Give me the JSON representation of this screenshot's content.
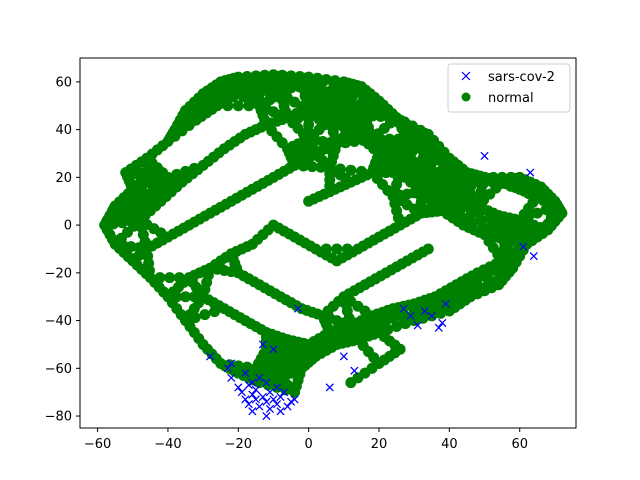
{
  "chart_data": {
    "type": "scatter",
    "xlim": [
      -65,
      76
    ],
    "ylim": [
      -85,
      70
    ],
    "x_ticks": [
      -60,
      -40,
      -20,
      0,
      20,
      40,
      60
    ],
    "y_ticks": [
      -80,
      -60,
      -40,
      -20,
      0,
      20,
      40,
      60
    ],
    "grid": false,
    "legend_position": "top-right",
    "series": [
      {
        "name": "sars-cov-2",
        "marker": "x",
        "color": "#0000ff",
        "points": [
          [
            -28,
            -55
          ],
          [
            -23,
            -60
          ],
          [
            -22,
            -58
          ],
          [
            -22,
            -64
          ],
          [
            -20,
            -68
          ],
          [
            -19,
            -70
          ],
          [
            -18,
            -73
          ],
          [
            -17,
            -67
          ],
          [
            -17,
            -75
          ],
          [
            -16,
            -71
          ],
          [
            -16,
            -78
          ],
          [
            -15,
            -73
          ],
          [
            -15,
            -69
          ],
          [
            -14,
            -76
          ],
          [
            -14,
            -64
          ],
          [
            -13,
            -72
          ],
          [
            -13,
            -50
          ],
          [
            -12,
            -74
          ],
          [
            -12,
            -66
          ],
          [
            -11,
            -77
          ],
          [
            -11,
            -70
          ],
          [
            -10,
            -73
          ],
          [
            -10,
            -52
          ],
          [
            -9,
            -75
          ],
          [
            -9,
            -68
          ],
          [
            -8,
            -72
          ],
          [
            -8,
            -78
          ],
          [
            -7,
            -70
          ],
          [
            -6,
            -76
          ],
          [
            -5,
            -74
          ],
          [
            -4,
            -73
          ],
          [
            -3,
            -35
          ],
          [
            6,
            -68
          ],
          [
            10,
            -55
          ],
          [
            13,
            -61
          ],
          [
            27,
            -35
          ],
          [
            29,
            -38
          ],
          [
            31,
            -42
          ],
          [
            33,
            -36
          ],
          [
            35,
            -38
          ],
          [
            37,
            -43
          ],
          [
            38,
            -41
          ],
          [
            39,
            -33
          ],
          [
            50,
            29
          ],
          [
            61,
            -9
          ],
          [
            63,
            22
          ],
          [
            64,
            -13
          ],
          [
            -18,
            -62
          ],
          [
            -16,
            -66
          ],
          [
            -12,
            -80
          ]
        ]
      },
      {
        "name": "normal",
        "marker": "o",
        "color": "#008000",
        "points": [
          [
            -55,
            8
          ],
          [
            -50,
            15
          ],
          [
            -45,
            22
          ],
          [
            -40,
            35
          ],
          [
            -35,
            48
          ],
          [
            -30,
            55
          ],
          [
            -25,
            60
          ],
          [
            -20,
            62
          ],
          [
            -15,
            58
          ],
          [
            -10,
            63
          ],
          [
            -5,
            60
          ],
          [
            0,
            62
          ],
          [
            5,
            55
          ],
          [
            10,
            60
          ],
          [
            15,
            58
          ],
          [
            20,
            52
          ],
          [
            25,
            45
          ],
          [
            30,
            40
          ],
          [
            35,
            32
          ],
          [
            40,
            28
          ],
          [
            45,
            22
          ],
          [
            50,
            20
          ],
          [
            55,
            18
          ],
          [
            60,
            15
          ],
          [
            65,
            12
          ],
          [
            70,
            8
          ],
          [
            72,
            5
          ],
          [
            68,
            -2
          ],
          [
            62,
            -8
          ],
          [
            55,
            -15
          ],
          [
            48,
            -20
          ],
          [
            42,
            -25
          ],
          [
            36,
            -30
          ],
          [
            30,
            -33
          ],
          [
            24,
            -35
          ],
          [
            18,
            -38
          ],
          [
            12,
            -42
          ],
          [
            6,
            -45
          ],
          [
            0,
            -50
          ],
          [
            -5,
            -55
          ],
          [
            -10,
            -58
          ],
          [
            -15,
            -60
          ],
          [
            -20,
            -62
          ],
          [
            -25,
            -58
          ],
          [
            -30,
            -50
          ],
          [
            -35,
            -40
          ],
          [
            -40,
            -30
          ],
          [
            -45,
            -22
          ],
          [
            -50,
            -15
          ],
          [
            -55,
            -8
          ],
          [
            -58,
            0
          ],
          [
            -56,
            5
          ],
          [
            -48,
            2
          ],
          [
            -42,
            10
          ],
          [
            -36,
            18
          ],
          [
            -30,
            25
          ],
          [
            -24,
            32
          ],
          [
            -18,
            38
          ],
          [
            -12,
            42
          ],
          [
            -6,
            45
          ],
          [
            0,
            48
          ],
          [
            6,
            44
          ],
          [
            12,
            40
          ],
          [
            18,
            36
          ],
          [
            24,
            30
          ],
          [
            30,
            24
          ],
          [
            36,
            18
          ],
          [
            42,
            12
          ],
          [
            48,
            8
          ],
          [
            54,
            4
          ],
          [
            60,
            2
          ],
          [
            -46,
            -10
          ],
          [
            -40,
            -5
          ],
          [
            -34,
            0
          ],
          [
            -28,
            5
          ],
          [
            -22,
            10
          ],
          [
            -16,
            15
          ],
          [
            -10,
            20
          ],
          [
            -4,
            25
          ],
          [
            2,
            30
          ],
          [
            8,
            34
          ],
          [
            14,
            38
          ],
          [
            20,
            30
          ],
          [
            26,
            22
          ],
          [
            32,
            14
          ],
          [
            38,
            6
          ],
          [
            44,
            0
          ],
          [
            50,
            -4
          ],
          [
            56,
            -6
          ],
          [
            -20,
            -20
          ],
          [
            -14,
            -25
          ],
          [
            -8,
            -30
          ],
          [
            -2,
            -35
          ],
          [
            4,
            -38
          ],
          [
            10,
            -30
          ],
          [
            16,
            -25
          ],
          [
            22,
            -20
          ],
          [
            28,
            -15
          ],
          [
            34,
            -10
          ],
          [
            -30,
            -30
          ],
          [
            -24,
            -35
          ],
          [
            -18,
            -40
          ],
          [
            -12,
            -45
          ],
          [
            -6,
            -48
          ],
          [
            -2,
            -60
          ],
          [
            2,
            -55
          ],
          [
            8,
            -50
          ],
          [
            14,
            -48
          ],
          [
            20,
            -45
          ],
          [
            -8,
            -64
          ],
          [
            -4,
            -70
          ],
          [
            -14,
            -66
          ],
          [
            -12,
            -52
          ],
          [
            12,
            -66
          ],
          [
            20,
            -58
          ],
          [
            26,
            -52
          ],
          [
            30,
            -40
          ],
          [
            40,
            -36
          ],
          [
            46,
            -30
          ],
          [
            54,
            -25
          ],
          [
            58,
            -18
          ],
          [
            64,
            -4
          ],
          [
            70,
            10
          ],
          [
            66,
            16
          ],
          [
            60,
            20
          ],
          [
            -2,
            60
          ],
          [
            -8,
            55
          ],
          [
            -14,
            50
          ],
          [
            4,
            52
          ],
          [
            10,
            50
          ],
          [
            16,
            46
          ],
          [
            22,
            48
          ],
          [
            28,
            36
          ],
          [
            34,
            38
          ],
          [
            40,
            22
          ],
          [
            44,
            18
          ],
          [
            -52,
            22
          ],
          [
            -46,
            28
          ],
          [
            -38,
            40
          ],
          [
            -32,
            44
          ],
          [
            -26,
            50
          ],
          [
            -20,
            55
          ],
          [
            -10,
            0
          ],
          [
            -4,
            -5
          ],
          [
            2,
            -10
          ],
          [
            8,
            -15
          ],
          [
            14,
            -10
          ],
          [
            20,
            -5
          ],
          [
            26,
            0
          ],
          [
            32,
            5
          ],
          [
            -16,
            -8
          ],
          [
            -22,
            -12
          ],
          [
            -28,
            -18
          ],
          [
            -34,
            -22
          ],
          [
            0,
            10
          ],
          [
            6,
            14
          ],
          [
            12,
            18
          ],
          [
            18,
            22
          ],
          [
            24,
            12
          ],
          [
            -6,
            32
          ],
          [
            0,
            36
          ],
          [
            6,
            24
          ],
          [
            -40,
            20
          ],
          [
            -44,
            12
          ],
          [
            -50,
            5
          ]
        ]
      }
    ]
  }
}
